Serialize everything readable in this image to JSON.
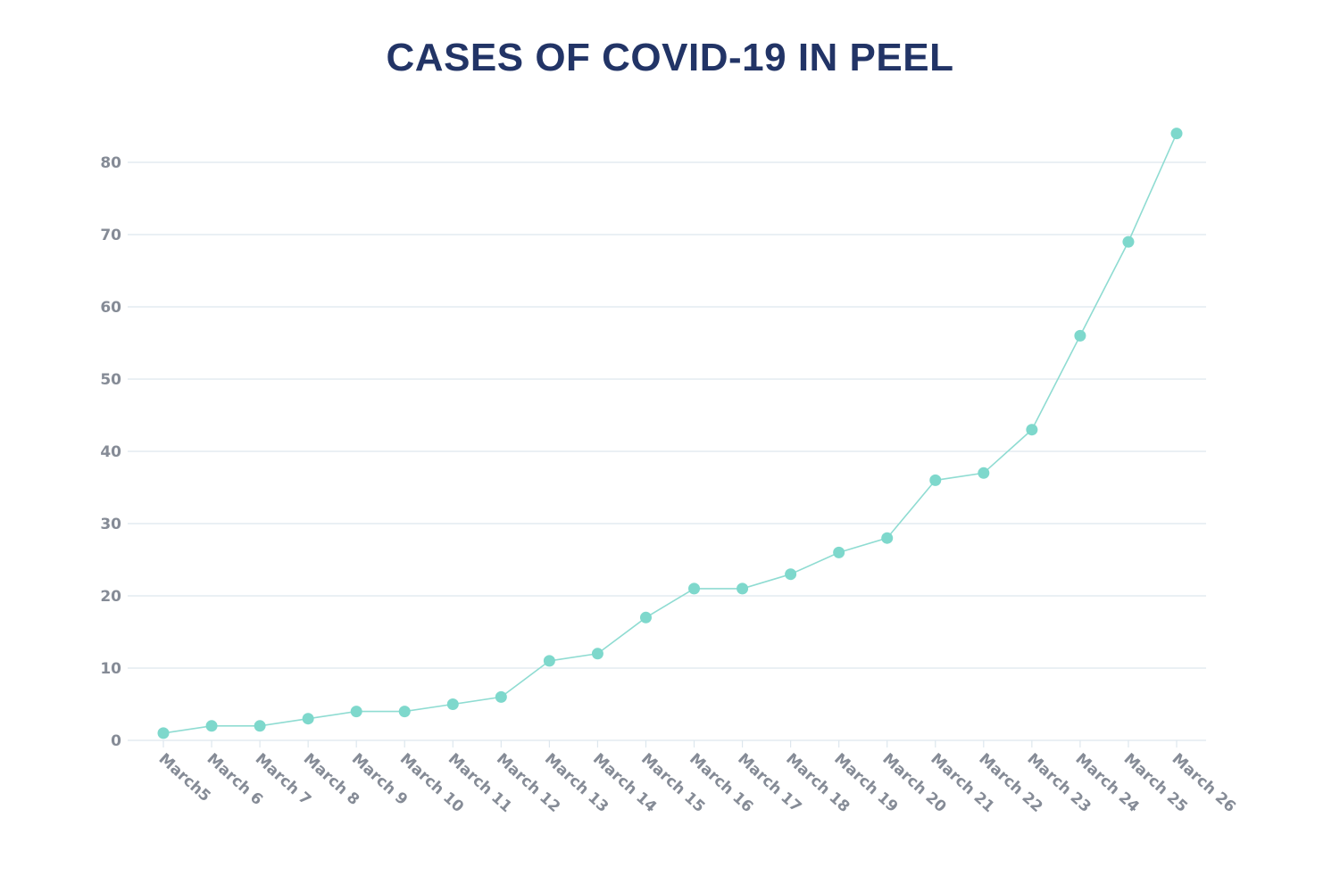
{
  "chart_data": {
    "type": "line",
    "title": "CASES OF COVID-19 IN PEEL",
    "xlabel": "",
    "ylabel": "",
    "categories": [
      "March5",
      "March 6",
      "March 7",
      "March 8",
      "March 9",
      "March 10",
      "March 11",
      "March 12",
      "March 13",
      "March 14",
      "March 15",
      "March 16",
      "March 17",
      "March 18",
      "March 19",
      "March 20",
      "March 21",
      "March 22",
      "March 23",
      "March 24",
      "March 25",
      "March 26"
    ],
    "series": [
      {
        "values": [
          1,
          2,
          2,
          3,
          4,
          4,
          5,
          6,
          11,
          12,
          17,
          21,
          21,
          23,
          26,
          28,
          36,
          37,
          43,
          56,
          69,
          84
        ]
      }
    ],
    "ylim": [
      0,
      80
    ],
    "yticks": [
      0,
      10,
      20,
      30,
      40,
      50,
      60,
      70,
      80
    ],
    "grid": true,
    "legend": "none",
    "colors": {
      "line": "#8fdcd2",
      "marker": "#7ed8cc",
      "grid": "#dde7ee",
      "axis_text": "#858b96",
      "title": "#223466"
    }
  }
}
